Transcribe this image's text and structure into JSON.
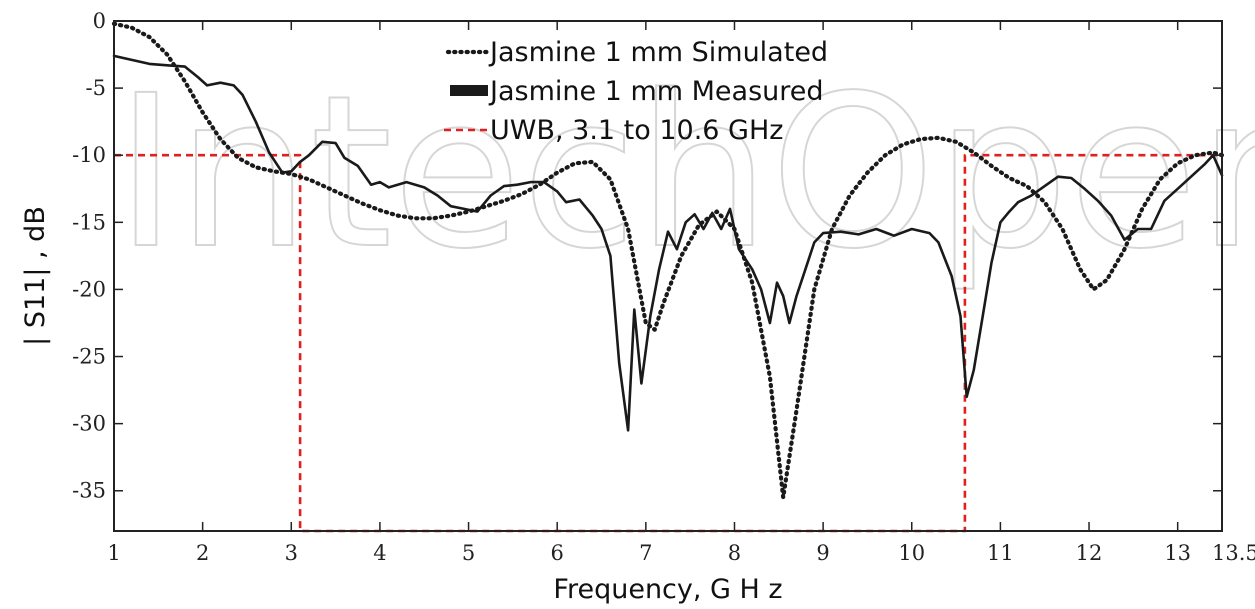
{
  "watermark": "IntechOpen",
  "chart_data": {
    "type": "line",
    "title": "",
    "xlabel": "Frequency,   G H  z",
    "ylabel": "| S11| , dB",
    "xlim": [
      1,
      13.5
    ],
    "ylim": [
      -38,
      0
    ],
    "xticks": [
      1,
      2,
      3,
      4,
      5,
      6,
      7,
      8,
      9,
      10,
      11,
      12,
      13,
      13.5
    ],
    "xtick_labels": [
      "1",
      "2",
      "3",
      "4",
      "5",
      "6",
      "7",
      "8",
      "9",
      "10",
      "11",
      "12",
      "13",
      "13.5"
    ],
    "yticks": [
      0,
      -5,
      -10,
      -15,
      -20,
      -25,
      -30,
      -35
    ],
    "ytick_labels": [
      "0",
      "-5",
      "-10",
      "-15",
      "-20",
      "-25",
      "-30",
      "-35"
    ],
    "grid": false,
    "legend_position": "top-center",
    "series": [
      {
        "name": "Jasmine 1 mm Simulated",
        "style": "dotted",
        "color": "#1a1a1a",
        "points": [
          [
            1.0,
            -0.2
          ],
          [
            1.2,
            -0.5
          ],
          [
            1.4,
            -1.2
          ],
          [
            1.6,
            -2.5
          ],
          [
            1.8,
            -4.5
          ],
          [
            2.0,
            -6.8
          ],
          [
            2.2,
            -8.8
          ],
          [
            2.4,
            -10.2
          ],
          [
            2.6,
            -10.9
          ],
          [
            2.8,
            -11.2
          ],
          [
            3.0,
            -11.4
          ],
          [
            3.2,
            -11.8
          ],
          [
            3.4,
            -12.4
          ],
          [
            3.6,
            -13.0
          ],
          [
            3.8,
            -13.6
          ],
          [
            4.0,
            -14.1
          ],
          [
            4.2,
            -14.5
          ],
          [
            4.4,
            -14.7
          ],
          [
            4.6,
            -14.7
          ],
          [
            4.8,
            -14.5
          ],
          [
            5.0,
            -14.2
          ],
          [
            5.2,
            -13.8
          ],
          [
            5.4,
            -13.4
          ],
          [
            5.6,
            -12.9
          ],
          [
            5.8,
            -12.2
          ],
          [
            6.0,
            -11.3
          ],
          [
            6.2,
            -10.6
          ],
          [
            6.4,
            -10.5
          ],
          [
            6.6,
            -11.8
          ],
          [
            6.8,
            -15.5
          ],
          [
            7.0,
            -22.5
          ],
          [
            7.1,
            -23.0
          ],
          [
            7.2,
            -21.0
          ],
          [
            7.4,
            -17.5
          ],
          [
            7.6,
            -15.2
          ],
          [
            7.8,
            -14.2
          ],
          [
            8.0,
            -15.5
          ],
          [
            8.2,
            -19.5
          ],
          [
            8.4,
            -26.5
          ],
          [
            8.55,
            -35.5
          ],
          [
            8.7,
            -29.0
          ],
          [
            8.9,
            -20.0
          ],
          [
            9.1,
            -15.5
          ],
          [
            9.3,
            -13.0
          ],
          [
            9.5,
            -11.3
          ],
          [
            9.7,
            -10.0
          ],
          [
            9.9,
            -9.2
          ],
          [
            10.1,
            -8.8
          ],
          [
            10.3,
            -8.7
          ],
          [
            10.5,
            -9.0
          ],
          [
            10.7,
            -9.8
          ],
          [
            10.9,
            -10.8
          ],
          [
            11.1,
            -11.7
          ],
          [
            11.3,
            -12.3
          ],
          [
            11.5,
            -13.5
          ],
          [
            11.7,
            -15.5
          ],
          [
            11.9,
            -18.5
          ],
          [
            12.05,
            -20.0
          ],
          [
            12.2,
            -19.3
          ],
          [
            12.4,
            -17.0
          ],
          [
            12.6,
            -14.0
          ],
          [
            12.8,
            -11.8
          ],
          [
            13.0,
            -10.6
          ],
          [
            13.2,
            -10.0
          ],
          [
            13.4,
            -9.8
          ],
          [
            13.5,
            -10.0
          ]
        ]
      },
      {
        "name": "Jasmine 1 mm Measured",
        "style": "solid",
        "color": "#1a1a1a",
        "points": [
          [
            1.0,
            -2.6
          ],
          [
            1.2,
            -2.9
          ],
          [
            1.4,
            -3.2
          ],
          [
            1.6,
            -3.3
          ],
          [
            1.8,
            -3.4
          ],
          [
            1.95,
            -4.2
          ],
          [
            2.05,
            -4.8
          ],
          [
            2.2,
            -4.6
          ],
          [
            2.35,
            -4.8
          ],
          [
            2.45,
            -5.5
          ],
          [
            2.6,
            -7.5
          ],
          [
            2.75,
            -9.8
          ],
          [
            2.9,
            -11.3
          ],
          [
            3.0,
            -11.2
          ],
          [
            3.1,
            -10.5
          ],
          [
            3.2,
            -10.0
          ],
          [
            3.35,
            -9.0
          ],
          [
            3.5,
            -9.1
          ],
          [
            3.6,
            -10.2
          ],
          [
            3.75,
            -10.8
          ],
          [
            3.9,
            -12.2
          ],
          [
            4.0,
            -12.0
          ],
          [
            4.1,
            -12.4
          ],
          [
            4.3,
            -12.0
          ],
          [
            4.5,
            -12.4
          ],
          [
            4.65,
            -13.0
          ],
          [
            4.8,
            -13.8
          ],
          [
            4.95,
            -14.0
          ],
          [
            5.1,
            -14.2
          ],
          [
            5.25,
            -13.0
          ],
          [
            5.4,
            -12.3
          ],
          [
            5.55,
            -12.2
          ],
          [
            5.7,
            -12.0
          ],
          [
            5.85,
            -12.0
          ],
          [
            6.0,
            -12.7
          ],
          [
            6.1,
            -13.5
          ],
          [
            6.25,
            -13.3
          ],
          [
            6.4,
            -14.5
          ],
          [
            6.5,
            -15.5
          ],
          [
            6.6,
            -17.5
          ],
          [
            6.7,
            -25.5
          ],
          [
            6.8,
            -30.5
          ],
          [
            6.87,
            -21.5
          ],
          [
            6.95,
            -27.0
          ],
          [
            7.05,
            -22.0
          ],
          [
            7.15,
            -18.5
          ],
          [
            7.25,
            -15.7
          ],
          [
            7.35,
            -17.0
          ],
          [
            7.45,
            -15.0
          ],
          [
            7.55,
            -14.4
          ],
          [
            7.65,
            -15.5
          ],
          [
            7.75,
            -14.3
          ],
          [
            7.85,
            -15.5
          ],
          [
            7.95,
            -14.0
          ],
          [
            8.05,
            -17.0
          ],
          [
            8.2,
            -18.5
          ],
          [
            8.3,
            -20.0
          ],
          [
            8.4,
            -22.5
          ],
          [
            8.48,
            -19.5
          ],
          [
            8.55,
            -20.5
          ],
          [
            8.62,
            -22.5
          ],
          [
            8.7,
            -20.5
          ],
          [
            8.8,
            -18.5
          ],
          [
            8.9,
            -16.5
          ],
          [
            9.0,
            -15.8
          ],
          [
            9.2,
            -15.7
          ],
          [
            9.4,
            -15.9
          ],
          [
            9.6,
            -15.5
          ],
          [
            9.8,
            -16.0
          ],
          [
            10.0,
            -15.5
          ],
          [
            10.2,
            -15.8
          ],
          [
            10.3,
            -16.5
          ],
          [
            10.45,
            -19.0
          ],
          [
            10.55,
            -22.0
          ],
          [
            10.62,
            -28.0
          ],
          [
            10.7,
            -26.0
          ],
          [
            10.8,
            -22.0
          ],
          [
            10.9,
            -18.0
          ],
          [
            11.0,
            -15.0
          ],
          [
            11.1,
            -14.2
          ],
          [
            11.2,
            -13.5
          ],
          [
            11.35,
            -13.0
          ],
          [
            11.5,
            -12.3
          ],
          [
            11.65,
            -11.6
          ],
          [
            11.8,
            -11.7
          ],
          [
            11.95,
            -12.5
          ],
          [
            12.1,
            -13.4
          ],
          [
            12.25,
            -14.5
          ],
          [
            12.4,
            -16.3
          ],
          [
            12.55,
            -15.5
          ],
          [
            12.7,
            -15.5
          ],
          [
            12.85,
            -13.4
          ],
          [
            13.0,
            -12.5
          ],
          [
            13.15,
            -11.6
          ],
          [
            13.3,
            -10.7
          ],
          [
            13.4,
            -10.0
          ],
          [
            13.5,
            -11.5
          ]
        ]
      },
      {
        "name": "UWB, 3.1 to 10.6 GHz",
        "style": "dashed",
        "color": "#e02020",
        "points": [
          [
            1.0,
            -10.0
          ],
          [
            3.1,
            -10.0
          ],
          [
            3.1,
            -38.0
          ],
          [
            10.6,
            -38.0
          ],
          [
            10.6,
            -10.0
          ],
          [
            13.5,
            -10.0
          ]
        ]
      }
    ]
  }
}
